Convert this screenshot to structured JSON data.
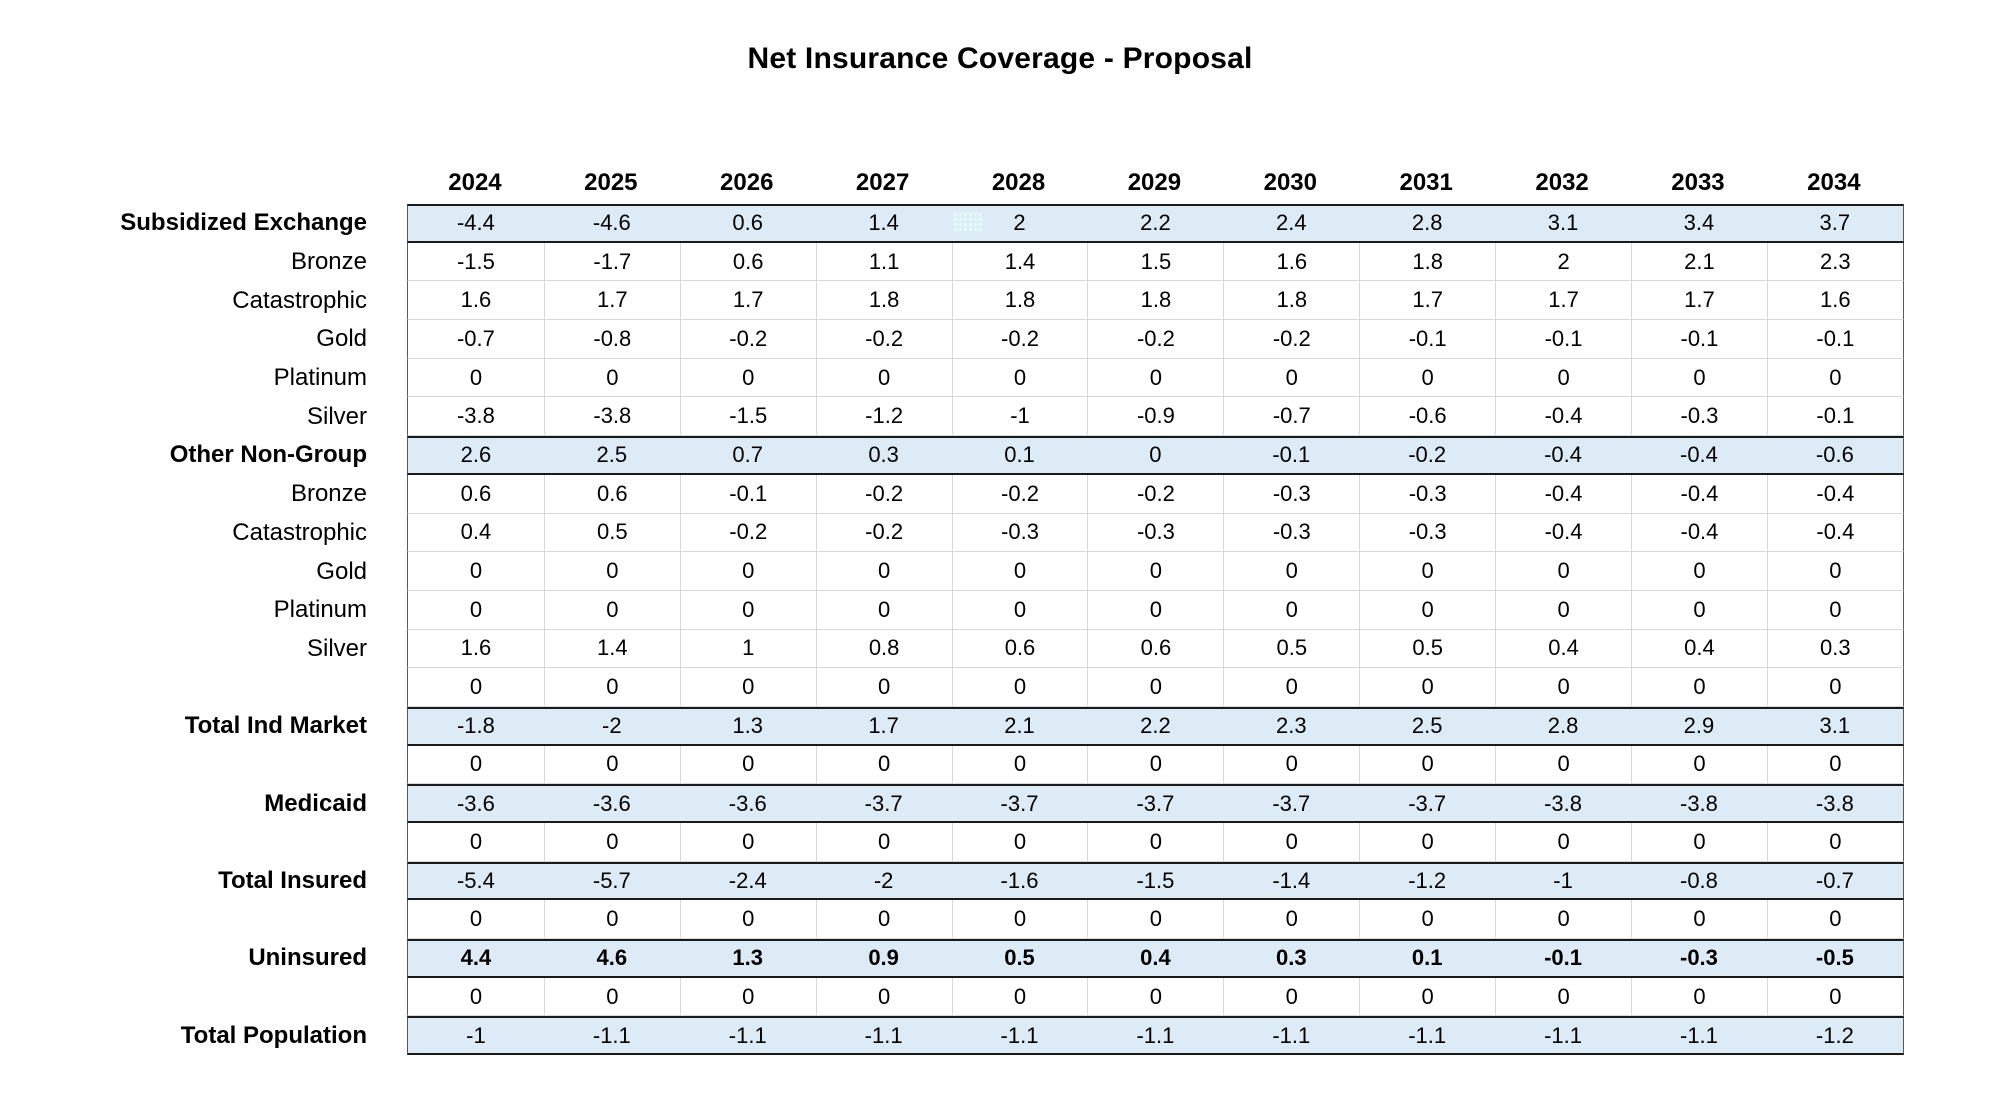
{
  "title": "Net Insurance Coverage - Proposal",
  "colors": {
    "row_highlight": "#DDEBF7",
    "section_border": "#1A1A1A",
    "grid_line": "#D9D9D9",
    "outer_border": "#595959",
    "patch_fill": "#D9F0F7",
    "text": "#000000",
    "background": "#FFFFFF"
  },
  "cell_highlight_patch": {
    "row": "Subsidized Exchange",
    "column": "2028",
    "color": "#D9F0F7"
  },
  "chart_data": {
    "type": "table",
    "title": "Net Insurance Coverage - Proposal",
    "columns": [
      "2024",
      "2025",
      "2026",
      "2027",
      "2028",
      "2029",
      "2030",
      "2031",
      "2032",
      "2033",
      "2034"
    ],
    "rows": [
      {
        "label": "Subsidized Exchange",
        "kind": "section",
        "highlighted": true,
        "bold_values": false,
        "values": [
          "-4.4",
          "-4.6",
          "0.6",
          "1.4",
          "2",
          "2.2",
          "2.4",
          "2.8",
          "3.1",
          "3.4",
          "3.7"
        ]
      },
      {
        "label": "Bronze",
        "kind": "sub",
        "highlighted": false,
        "bold_values": false,
        "values": [
          "-1.5",
          "-1.7",
          "0.6",
          "1.1",
          "1.4",
          "1.5",
          "1.6",
          "1.8",
          "2",
          "2.1",
          "2.3"
        ]
      },
      {
        "label": "Catastrophic",
        "kind": "sub",
        "highlighted": false,
        "bold_values": false,
        "values": [
          "1.6",
          "1.7",
          "1.7",
          "1.8",
          "1.8",
          "1.8",
          "1.8",
          "1.7",
          "1.7",
          "1.7",
          "1.6"
        ]
      },
      {
        "label": "Gold",
        "kind": "sub",
        "highlighted": false,
        "bold_values": false,
        "values": [
          "-0.7",
          "-0.8",
          "-0.2",
          "-0.2",
          "-0.2",
          "-0.2",
          "-0.2",
          "-0.1",
          "-0.1",
          "-0.1",
          "-0.1"
        ]
      },
      {
        "label": "Platinum",
        "kind": "sub",
        "highlighted": false,
        "bold_values": false,
        "values": [
          "0",
          "0",
          "0",
          "0",
          "0",
          "0",
          "0",
          "0",
          "0",
          "0",
          "0"
        ]
      },
      {
        "label": "Silver",
        "kind": "sub",
        "highlighted": false,
        "bold_values": false,
        "values": [
          "-3.8",
          "-3.8",
          "-1.5",
          "-1.2",
          "-1",
          "-0.9",
          "-0.7",
          "-0.6",
          "-0.4",
          "-0.3",
          "-0.1"
        ]
      },
      {
        "label": "Other Non-Group",
        "kind": "section",
        "highlighted": true,
        "bold_values": false,
        "values": [
          "2.6",
          "2.5",
          "0.7",
          "0.3",
          "0.1",
          "0",
          "-0.1",
          "-0.2",
          "-0.4",
          "-0.4",
          "-0.6"
        ]
      },
      {
        "label": "Bronze",
        "kind": "sub",
        "highlighted": false,
        "bold_values": false,
        "values": [
          "0.6",
          "0.6",
          "-0.1",
          "-0.2",
          "-0.2",
          "-0.2",
          "-0.3",
          "-0.3",
          "-0.4",
          "-0.4",
          "-0.4"
        ]
      },
      {
        "label": "Catastrophic",
        "kind": "sub",
        "highlighted": false,
        "bold_values": false,
        "values": [
          "0.4",
          "0.5",
          "-0.2",
          "-0.2",
          "-0.3",
          "-0.3",
          "-0.3",
          "-0.3",
          "-0.4",
          "-0.4",
          "-0.4"
        ]
      },
      {
        "label": "Gold",
        "kind": "sub",
        "highlighted": false,
        "bold_values": false,
        "values": [
          "0",
          "0",
          "0",
          "0",
          "0",
          "0",
          "0",
          "0",
          "0",
          "0",
          "0"
        ]
      },
      {
        "label": "Platinum",
        "kind": "sub",
        "highlighted": false,
        "bold_values": false,
        "values": [
          "0",
          "0",
          "0",
          "0",
          "0",
          "0",
          "0",
          "0",
          "0",
          "0",
          "0"
        ]
      },
      {
        "label": "Silver",
        "kind": "sub",
        "highlighted": false,
        "bold_values": false,
        "values": [
          "1.6",
          "1.4",
          "1",
          "0.8",
          "0.6",
          "0.6",
          "0.5",
          "0.5",
          "0.4",
          "0.4",
          "0.3"
        ]
      },
      {
        "label": "",
        "kind": "spacer",
        "highlighted": false,
        "bold_values": false,
        "values": [
          "0",
          "0",
          "0",
          "0",
          "0",
          "0",
          "0",
          "0",
          "0",
          "0",
          "0"
        ]
      },
      {
        "label": "Total Ind Market",
        "kind": "section",
        "highlighted": true,
        "bold_values": false,
        "values": [
          "-1.8",
          "-2",
          "1.3",
          "1.7",
          "2.1",
          "2.2",
          "2.3",
          "2.5",
          "2.8",
          "2.9",
          "3.1"
        ]
      },
      {
        "label": "",
        "kind": "spacer",
        "highlighted": false,
        "bold_values": false,
        "values": [
          "0",
          "0",
          "0",
          "0",
          "0",
          "0",
          "0",
          "0",
          "0",
          "0",
          "0"
        ]
      },
      {
        "label": "Medicaid",
        "kind": "section",
        "highlighted": true,
        "bold_values": false,
        "values": [
          "-3.6",
          "-3.6",
          "-3.6",
          "-3.7",
          "-3.7",
          "-3.7",
          "-3.7",
          "-3.7",
          "-3.8",
          "-3.8",
          "-3.8"
        ]
      },
      {
        "label": "",
        "kind": "spacer",
        "highlighted": false,
        "bold_values": false,
        "values": [
          "0",
          "0",
          "0",
          "0",
          "0",
          "0",
          "0",
          "0",
          "0",
          "0",
          "0"
        ]
      },
      {
        "label": "Total Insured",
        "kind": "section",
        "highlighted": true,
        "bold_values": false,
        "values": [
          "-5.4",
          "-5.7",
          "-2.4",
          "-2",
          "-1.6",
          "-1.5",
          "-1.4",
          "-1.2",
          "-1",
          "-0.8",
          "-0.7"
        ]
      },
      {
        "label": "",
        "kind": "spacer",
        "highlighted": false,
        "bold_values": false,
        "values": [
          "0",
          "0",
          "0",
          "0",
          "0",
          "0",
          "0",
          "0",
          "0",
          "0",
          "0"
        ]
      },
      {
        "label": "Uninsured",
        "kind": "section",
        "highlighted": true,
        "bold_values": true,
        "values": [
          "4.4",
          "4.6",
          "1.3",
          "0.9",
          "0.5",
          "0.4",
          "0.3",
          "0.1",
          "-0.1",
          "-0.3",
          "-0.5"
        ]
      },
      {
        "label": "",
        "kind": "spacer",
        "highlighted": false,
        "bold_values": false,
        "values": [
          "0",
          "0",
          "0",
          "0",
          "0",
          "0",
          "0",
          "0",
          "0",
          "0",
          "0"
        ]
      },
      {
        "label": "Total Population",
        "kind": "section",
        "highlighted": true,
        "bold_values": false,
        "values": [
          "-1",
          "-1.1",
          "-1.1",
          "-1.1",
          "-1.1",
          "-1.1",
          "-1.1",
          "-1.1",
          "-1.1",
          "-1.1",
          "-1.2"
        ]
      }
    ]
  }
}
